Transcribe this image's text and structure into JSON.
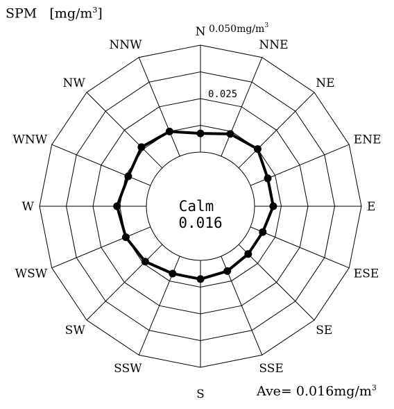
{
  "chart_data": {
    "type": "radar",
    "title": "SPM",
    "unit_prefix": "[mg/m",
    "unit_power": "3",
    "unit_suffix": "]",
    "directions": [
      "N",
      "NNE",
      "NE",
      "ENE",
      "E",
      "ESE",
      "SE",
      "SSE",
      "S",
      "SSW",
      "SW",
      "WSW",
      "W",
      "WNW",
      "NW",
      "NNW"
    ],
    "values": [
      0.017,
      0.019,
      0.02,
      0.017,
      0.017,
      0.015,
      0.015,
      0.016,
      0.017,
      0.017,
      0.019,
      0.02,
      0.021,
      0.019,
      0.021,
      0.02
    ],
    "rmin": 0.01,
    "rmax": 0.05,
    "ring_labels": {
      "max_label": "0.050mg/m",
      "max_power": "3",
      "mid_label": "0.025"
    },
    "calm": {
      "label": "Calm",
      "value": "0.016"
    },
    "average": {
      "prefix": "Ave= ",
      "value": "0.016mg/m",
      "power": "3"
    }
  }
}
